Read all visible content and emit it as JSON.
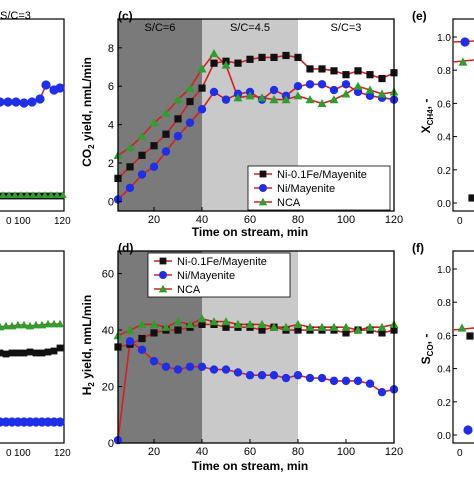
{
  "chart_data": [
    {
      "panel": "(c)",
      "type": "line",
      "xlabel": "Time on stream, min",
      "ylabel": "CO2 yield, nmL/min",
      "xlim": [
        5,
        120
      ],
      "ylim": [
        -0.5,
        9.5
      ],
      "xticks": [
        20,
        40,
        60,
        80,
        100,
        120
      ],
      "yticks": [
        0,
        2,
        4,
        6,
        8
      ],
      "regions": [
        {
          "label": "S/C=6",
          "from": 5,
          "to": 40,
          "color": "#7a7a7a"
        },
        {
          "label": "S/C=4.5",
          "from": 40,
          "to": 80,
          "color": "#c9c9c9"
        },
        {
          "label": "S/C=3",
          "from": 80,
          "to": 120,
          "color": "#ffffff"
        }
      ],
      "legend": "bottom-right",
      "series": [
        {
          "name": "Ni-0.1Fe/Mayenite",
          "marker": "square",
          "marker_color": "#111111",
          "line_color": "#d62020",
          "x": [
            5,
            10,
            15,
            20,
            25,
            30,
            35,
            40,
            45,
            50,
            55,
            60,
            65,
            70,
            75,
            80,
            85,
            90,
            95,
            100,
            105,
            110,
            115,
            120
          ],
          "y": [
            1.2,
            1.8,
            2.4,
            2.9,
            3.5,
            4.3,
            5.2,
            5.9,
            7.2,
            7.3,
            7.2,
            7.4,
            7.5,
            7.5,
            7.6,
            7.5,
            6.9,
            6.9,
            6.8,
            6.6,
            6.8,
            6.6,
            6.4,
            6.7
          ]
        },
        {
          "name": "Ni/Mayenite",
          "marker": "circle",
          "marker_color": "#1f2ee8",
          "line_color": "#d62020",
          "x": [
            5,
            10,
            15,
            20,
            25,
            30,
            35,
            40,
            45,
            50,
            55,
            60,
            65,
            70,
            75,
            80,
            85,
            90,
            95,
            100,
            105,
            110,
            115,
            120
          ],
          "y": [
            0.1,
            0.7,
            1.4,
            1.8,
            2.6,
            3.4,
            4.1,
            4.8,
            5.7,
            5.3,
            5.6,
            5.7,
            5.3,
            5.8,
            5.5,
            6.0,
            6.1,
            6.1,
            5.8,
            6.1,
            5.7,
            5.5,
            5.4,
            5.3
          ]
        },
        {
          "name": "NCA",
          "marker": "triangle",
          "marker_color": "#2e9e2e",
          "line_color": "#d62020",
          "x": [
            5,
            10,
            15,
            20,
            25,
            30,
            35,
            40,
            45,
            50,
            55,
            60,
            65,
            70,
            75,
            80,
            85,
            90,
            95,
            100,
            105,
            110,
            115,
            120
          ],
          "y": [
            2.4,
            2.8,
            3.4,
            4.1,
            4.6,
            5.3,
            5.9,
            6.9,
            7.7,
            7.1,
            5.4,
            5.5,
            5.4,
            5.3,
            5.3,
            5.5,
            5.3,
            5.1,
            5.3,
            5.6,
            6.0,
            5.8,
            5.6,
            5.7
          ]
        }
      ]
    },
    {
      "panel": "(d)",
      "type": "line",
      "xlabel": "Time on stream, min",
      "ylabel": "H2 yield, nmL/min",
      "xlim": [
        5,
        120
      ],
      "ylim": [
        0,
        68
      ],
      "xticks": [
        20,
        40,
        60,
        80,
        100,
        120
      ],
      "yticks": [
        0,
        20,
        40,
        60
      ],
      "regions": [
        {
          "label": "",
          "from": 5,
          "to": 40,
          "color": "#7a7a7a"
        },
        {
          "label": "",
          "from": 40,
          "to": 80,
          "color": "#c9c9c9"
        },
        {
          "label": "",
          "from": 80,
          "to": 120,
          "color": "#ffffff"
        }
      ],
      "legend": "top-left",
      "series": [
        {
          "name": "Ni-0.1Fe/Mayenite",
          "marker": "square",
          "marker_color": "#111111",
          "line_color": "#d62020",
          "x": [
            5,
            10,
            15,
            20,
            25,
            30,
            35,
            40,
            45,
            50,
            55,
            60,
            65,
            70,
            75,
            80,
            85,
            90,
            95,
            100,
            105,
            110,
            115,
            120
          ],
          "y": [
            34,
            35,
            37,
            39,
            40,
            40,
            41,
            42,
            42,
            41,
            41,
            41,
            40,
            41,
            40,
            40,
            40,
            40,
            40,
            39,
            40,
            40,
            39,
            40
          ]
        },
        {
          "name": "Ni/Mayenite",
          "marker": "circle",
          "marker_color": "#1f2ee8",
          "line_color": "#d62020",
          "x": [
            5,
            10,
            15,
            20,
            25,
            30,
            35,
            40,
            45,
            50,
            55,
            60,
            65,
            70,
            75,
            80,
            85,
            90,
            95,
            100,
            105,
            110,
            115,
            120
          ],
          "y": [
            1,
            36,
            33,
            29,
            27,
            26,
            27,
            27,
            26,
            26,
            25,
            24,
            24,
            24,
            23,
            24,
            23,
            23,
            22,
            22,
            22,
            21,
            18,
            19
          ]
        },
        {
          "name": "NCA",
          "marker": "triangle",
          "marker_color": "#2e9e2e",
          "line_color": "#d62020",
          "x": [
            5,
            10,
            15,
            20,
            25,
            30,
            35,
            40,
            45,
            50,
            55,
            60,
            65,
            70,
            75,
            80,
            85,
            90,
            95,
            100,
            105,
            110,
            115,
            120
          ],
          "y": [
            38,
            40,
            42,
            42,
            41,
            43,
            42,
            44,
            43,
            43,
            42,
            42,
            42,
            41,
            41,
            42,
            41,
            41,
            41,
            41,
            40,
            41,
            41,
            42
          ]
        }
      ]
    }
  ],
  "left_fragment": {
    "top_label": "S/C=3",
    "top_xticks": [
      "0",
      "100",
      "120"
    ],
    "bottom_xticks": [
      "0",
      "100",
      "120"
    ]
  },
  "right_fragment": {
    "panel_e": "(e)",
    "panel_f": "(f)",
    "ylabel_e": "X",
    "ylabel_e_sub": "CH4",
    "ylabel_e_rest": ", -",
    "ylabel_f": "S",
    "ylabel_f_sub": "CO",
    "ylabel_f_rest": ", -",
    "yticks_e": [
      "1.0",
      "0.8",
      "0.6",
      "0.4",
      "0.2",
      "0.0"
    ],
    "yticks_f": [
      "1.0",
      "0.8",
      "0.6",
      "0.4",
      "0.2",
      "0.0"
    ],
    "xtick_e": "0",
    "xtick_f": "0"
  }
}
